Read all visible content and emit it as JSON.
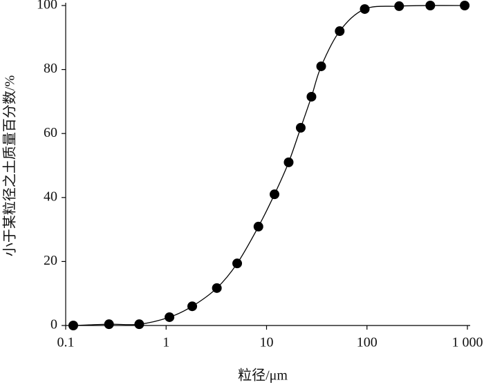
{
  "chart_data": {
    "type": "scatter",
    "xlabel": "粒径/μm",
    "ylabel": "小于某粒径之土质量百分数/%",
    "xscale": "log",
    "xlim": [
      0.1,
      1000
    ],
    "ylim": [
      0,
      100
    ],
    "xticks": [
      0.1,
      1,
      10,
      100,
      {
        "value": 1000,
        "label": "1 000"
      }
    ],
    "yticks": [
      0,
      20,
      40,
      60,
      80,
      100
    ],
    "series": [
      {
        "color": "#000000",
        "x": [
          0.119,
          0.27,
          0.54,
          1.08,
          1.82,
          3.2,
          5.1,
          8.3,
          12,
          16.6,
          21.9,
          28,
          35,
          53.5,
          95,
          209,
          427,
          940
        ],
        "values": [
          0,
          0.4,
          0.4,
          2.6,
          6.0,
          11.7,
          19.4,
          30.9,
          41,
          51,
          61.8,
          71.5,
          81,
          92,
          98.9,
          99.8,
          100,
          100
        ]
      }
    ]
  }
}
